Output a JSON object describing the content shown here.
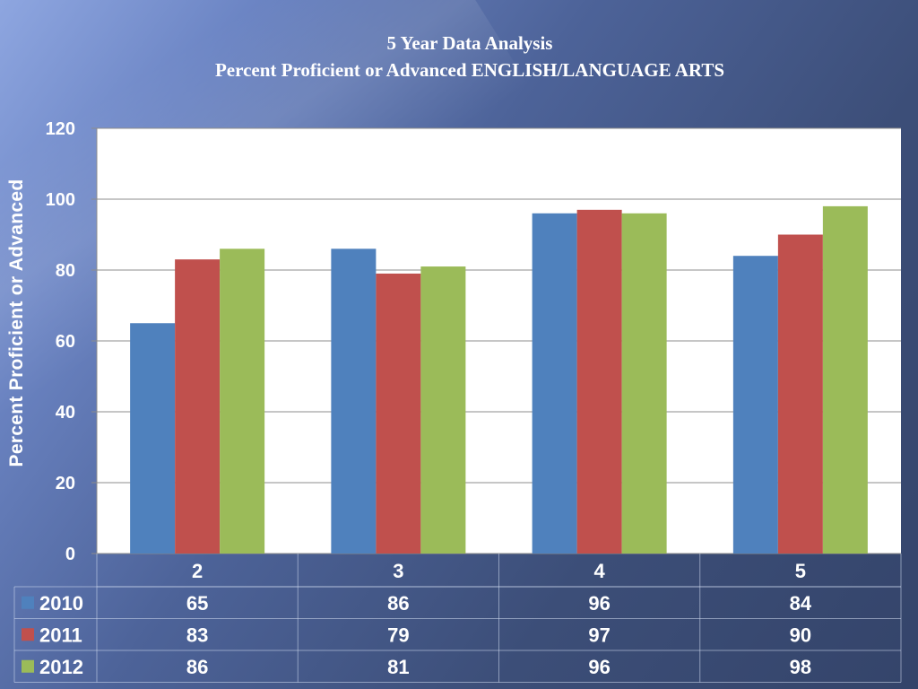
{
  "title": "5 Year Data Analysis",
  "subtitle": "Percent Proficient or Advanced ENGLISH/LANGUAGE ARTS",
  "chart_data": {
    "type": "bar",
    "title": "5 Year Data Analysis",
    "subtitle": "Percent Proficient or Advanced ENGLISH/LANGUAGE ARTS",
    "xlabel": "",
    "ylabel": "Percent Proficient or Advanced",
    "ylim": [
      0,
      120
    ],
    "yticks": [
      0,
      20,
      40,
      60,
      80,
      100,
      120
    ],
    "grid": true,
    "legend": "data-table-left",
    "categories": [
      "2",
      "3",
      "4",
      "5"
    ],
    "series": [
      {
        "name": "2010",
        "color": "#4f81bd",
        "values": [
          65,
          86,
          96,
          84
        ]
      },
      {
        "name": "2011",
        "color": "#c0504d",
        "values": [
          83,
          79,
          97,
          90
        ]
      },
      {
        "name": "2012",
        "color": "#9bbb59",
        "values": [
          86,
          81,
          96,
          98
        ]
      }
    ]
  }
}
